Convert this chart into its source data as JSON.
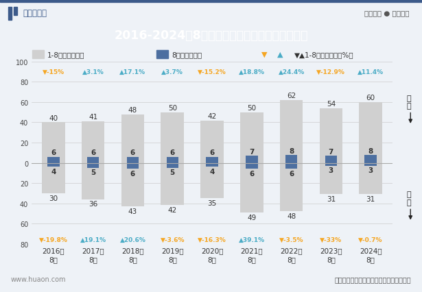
{
  "title": "2016-2024年8月湖北省外商投资企业进、出口额",
  "years": [
    "2016年\n8月",
    "2017年\n8月",
    "2018年\n8月",
    "2019年\n8月",
    "2020年\n8月",
    "2021年\n8月",
    "2022年\n8月",
    "2023年\n8月",
    "2024年\n8月"
  ],
  "export_18": [
    40,
    41,
    48,
    50,
    42,
    50,
    62,
    54,
    60
  ],
  "export_aug": [
    6,
    6,
    6,
    6,
    6,
    7,
    8,
    7,
    8
  ],
  "import_18": [
    30,
    36,
    43,
    42,
    35,
    49,
    48,
    31,
    31
  ],
  "import_aug": [
    4,
    5,
    6,
    5,
    4,
    6,
    6,
    3,
    3
  ],
  "export_growth": [
    "▼-15%",
    "▲3.1%",
    "▲17.1%",
    "▲3.7%",
    "▼-15.2%",
    "▲18.8%",
    "▲24.4%",
    "▼-12.9%",
    "▲11.4%"
  ],
  "export_growth_up": [
    false,
    true,
    true,
    true,
    false,
    true,
    true,
    false,
    true
  ],
  "import_growth": [
    "▼-19.8%",
    "▲19.1%",
    "▲20.6%",
    "▼-3.6%",
    "▼-16.3%",
    "▲39.1%",
    "▼-3.5%",
    "▼-33%",
    "▼-0.7%"
  ],
  "import_growth_up": [
    false,
    true,
    true,
    false,
    false,
    true,
    false,
    false,
    false
  ],
  "bar_color_18": "#d0d0d0",
  "bar_color_aug": "#4d6fa0",
  "growth_up_color": "#4bacc6",
  "growth_down_color": "#f5a623",
  "title_bg_color": "#3c5a8a",
  "title_text_color": "#ffffff",
  "bg_color": "#eef2f7",
  "ylim": [
    -80,
    100
  ],
  "legend_label_18": "1-8月（亿美元）",
  "legend_label_aug": "8月（亿美元）",
  "legend_label_growth": "▼▲1-8月同比增速（%）",
  "source_text": "数据来源：中国海关、华经产业研究院整理",
  "website": "www.huaon.com",
  "logo_text": "华经情报网",
  "right_text": "专业严谨 ● 客观科学",
  "export_label": "出\n口",
  "import_label": "进\n口",
  "yticks": [
    -80,
    -60,
    -40,
    -20,
    0,
    20,
    40,
    60,
    80,
    100
  ],
  "ytick_labels": [
    "80",
    "60",
    "40",
    "20",
    "0",
    "20",
    "40",
    "60",
    "80",
    "100"
  ]
}
